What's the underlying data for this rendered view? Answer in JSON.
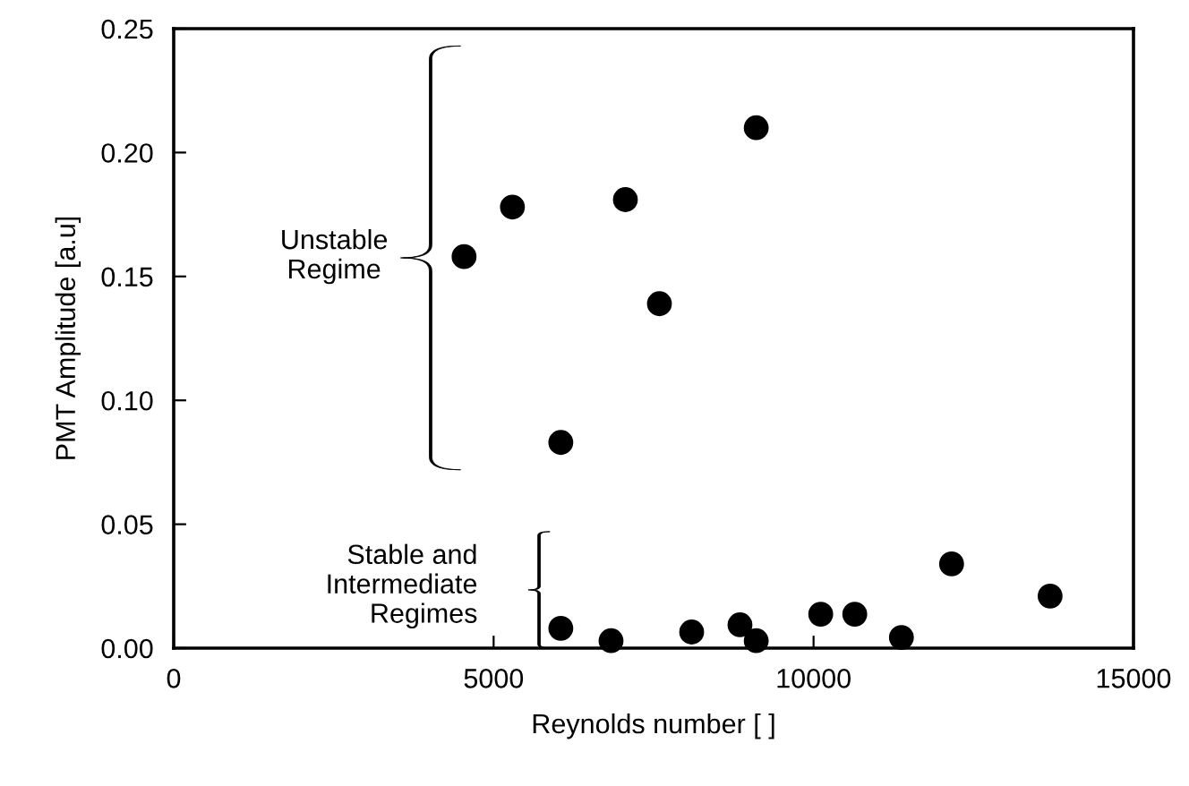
{
  "chart_data": {
    "type": "scatter",
    "xlabel": "Reynolds number [ ]",
    "ylabel": "PMT Amplitude [a.u]",
    "x": [
      4538,
      5294,
      7059,
      9104,
      7591,
      6050,
      6050,
      6835,
      8095,
      8850,
      9104,
      10112,
      10644,
      11373,
      12157,
      13697
    ],
    "series": [
      {
        "color": "#000000",
        "values": [
          0.158,
          0.178,
          0.181,
          0.21,
          0.139,
          0.083,
          0.008,
          0.003,
          0.0065,
          0.0094,
          0.003,
          0.0137,
          0.0137,
          0.0043,
          0.034,
          0.021
        ]
      }
    ],
    "xlim": [
      0,
      15000
    ],
    "xticks": [
      0,
      5000,
      10000,
      15000
    ],
    "ylim": [
      0,
      0.25
    ],
    "yticks": [
      {
        "value": 0,
        "label": "0.00"
      },
      {
        "value": 0.05,
        "label": "0.05"
      },
      {
        "value": 0.1,
        "label": "0.10"
      },
      {
        "value": 0.15,
        "label": "0.15"
      },
      {
        "value": 0.2,
        "label": "0.20"
      },
      {
        "value": 0.25,
        "label": "0.25"
      }
    ],
    "grid": false,
    "marker": "circle",
    "annotations": [
      "Unstable\nRegime",
      "Stable and\nIntermediate\nRegimes"
    ]
  }
}
